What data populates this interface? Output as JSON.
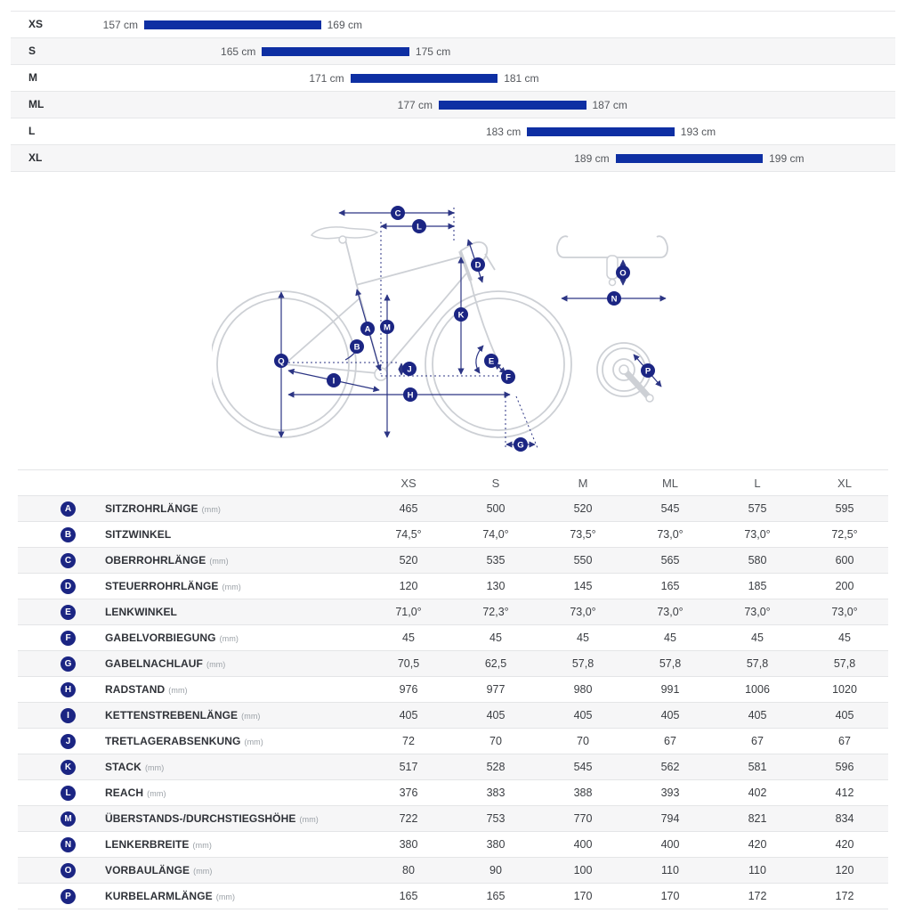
{
  "colors": {
    "bar_blue": "#0e2fa3",
    "badge_navy": "#1b2583",
    "dimension_line_navy": "#2c3584",
    "bike_outline_gray": "#cdd0d5",
    "row_stripe": "#f6f6f7",
    "row_border": "#e4e5e7",
    "text_dark": "#2b2e33",
    "text_gray": "#54575c"
  },
  "chart_data": [
    {
      "type": "bar",
      "subtype": "horizontal-range-bars",
      "title": "Rider height range per frame size",
      "categories": [
        "XS",
        "S",
        "M",
        "ML",
        "L",
        "XL"
      ],
      "unit": "cm",
      "ranges": [
        [
          157,
          169
        ],
        [
          165,
          175
        ],
        [
          171,
          181
        ],
        [
          177,
          187
        ],
        [
          183,
          193
        ],
        [
          189,
          199
        ]
      ],
      "xlim": [
        157,
        199
      ],
      "grid": false,
      "legend": false
    },
    {
      "type": "table",
      "title": "Geometry",
      "columns": [
        "XS",
        "S",
        "M",
        "ML",
        "L",
        "XL"
      ],
      "rows": [
        {
          "letter": "A",
          "label": "SITZROHRLÄNGE",
          "unit": "(mm)",
          "values": [
            "465",
            "500",
            "520",
            "545",
            "575",
            "595"
          ]
        },
        {
          "letter": "B",
          "label": "SITZWINKEL",
          "unit": "",
          "values": [
            "74,5°",
            "74,0°",
            "73,5°",
            "73,0°",
            "73,0°",
            "72,5°"
          ]
        },
        {
          "letter": "C",
          "label": "OBERROHRLÄNGE",
          "unit": "(mm)",
          "values": [
            "520",
            "535",
            "550",
            "565",
            "580",
            "600"
          ]
        },
        {
          "letter": "D",
          "label": "STEUERROHRLÄNGE",
          "unit": "(mm)",
          "values": [
            "120",
            "130",
            "145",
            "165",
            "185",
            "200"
          ]
        },
        {
          "letter": "E",
          "label": "LENKWINKEL",
          "unit": "",
          "values": [
            "71,0°",
            "72,3°",
            "73,0°",
            "73,0°",
            "73,0°",
            "73,0°"
          ]
        },
        {
          "letter": "F",
          "label": "GABELVORBIEGUNG",
          "unit": "(mm)",
          "values": [
            "45",
            "45",
            "45",
            "45",
            "45",
            "45"
          ]
        },
        {
          "letter": "G",
          "label": "GABELNACHLAUF",
          "unit": "(mm)",
          "values": [
            "70,5",
            "62,5",
            "57,8",
            "57,8",
            "57,8",
            "57,8"
          ]
        },
        {
          "letter": "H",
          "label": "RADSTAND",
          "unit": "(mm)",
          "values": [
            "976",
            "977",
            "980",
            "991",
            "1006",
            "1020"
          ]
        },
        {
          "letter": "I",
          "label": "KETTENSTREBENLÄNGE",
          "unit": "(mm)",
          "values": [
            "405",
            "405",
            "405",
            "405",
            "405",
            "405"
          ]
        },
        {
          "letter": "J",
          "label": "TRETLAGERABSENKUNG",
          "unit": "(mm)",
          "values": [
            "72",
            "70",
            "70",
            "67",
            "67",
            "67"
          ]
        },
        {
          "letter": "K",
          "label": "STACK",
          "unit": "(mm)",
          "values": [
            "517",
            "528",
            "545",
            "562",
            "581",
            "596"
          ]
        },
        {
          "letter": "L",
          "label": "REACH",
          "unit": "(mm)",
          "values": [
            "376",
            "383",
            "388",
            "393",
            "402",
            "412"
          ]
        },
        {
          "letter": "M",
          "label": "ÜBERSTANDS-/DURCHSTIEGSHÖHE",
          "unit": "(mm)",
          "values": [
            "722",
            "753",
            "770",
            "794",
            "821",
            "834"
          ]
        },
        {
          "letter": "N",
          "label": "LENKERBREITE",
          "unit": "(mm)",
          "values": [
            "380",
            "380",
            "400",
            "400",
            "420",
            "420"
          ]
        },
        {
          "letter": "O",
          "label": "VORBAULÄNGE",
          "unit": "(mm)",
          "values": [
            "80",
            "90",
            "100",
            "110",
            "110",
            "120"
          ]
        },
        {
          "letter": "P",
          "label": "KURBELARMLÄNGE",
          "unit": "(mm)",
          "values": [
            "165",
            "165",
            "170",
            "170",
            "172",
            "172"
          ]
        }
      ]
    }
  ],
  "diagram": {
    "markers": [
      "A",
      "B",
      "C",
      "D",
      "E",
      "F",
      "G",
      "H",
      "I",
      "J",
      "K",
      "L",
      "M",
      "N",
      "O",
      "P",
      "Q"
    ]
  }
}
